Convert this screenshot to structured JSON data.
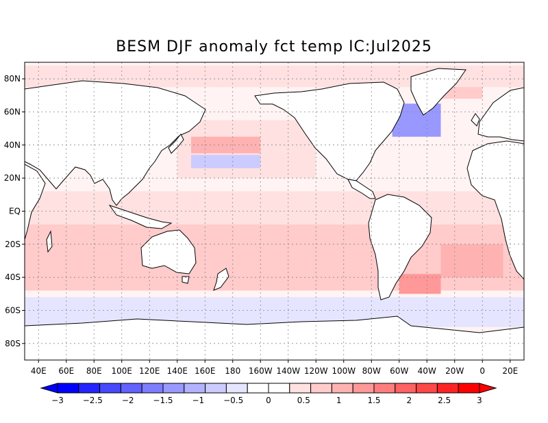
{
  "title": "BESM  DJF anomaly fct temp IC:Jul2025",
  "lat_labels": [
    "80N",
    "60N",
    "40N",
    "20N",
    "EQ",
    "20S",
    "40S",
    "60S",
    "80S"
  ],
  "lat_values": [
    80,
    60,
    40,
    20,
    0,
    -20,
    -40,
    -60,
    -80
  ],
  "lon_labels": [
    "40E",
    "60E",
    "80E",
    "100E",
    "120E",
    "140E",
    "160E",
    "180",
    "160W",
    "140W",
    "120W",
    "100W",
    "80W",
    "60W",
    "40W",
    "20W",
    "0",
    "20E"
  ],
  "lon_values": [
    40,
    60,
    80,
    100,
    120,
    140,
    160,
    180,
    200,
    220,
    240,
    260,
    280,
    300,
    320,
    340,
    360,
    380
  ],
  "map_extent": {
    "lon_min": 30,
    "lon_max": 390,
    "lat_min": -90,
    "lat_max": 90
  },
  "colorbar": {
    "ticks": [
      "−3",
      "−2.5",
      "−2",
      "−1.5",
      "−1",
      "−0.5",
      "0",
      "0.5",
      "1",
      "1.5",
      "2",
      "2.5",
      "3"
    ],
    "colors": [
      "#0000ff",
      "#2424ff",
      "#4848ff",
      "#6262ff",
      "#7d7dff",
      "#9898ff",
      "#b2b2ff",
      "#cbcbff",
      "#e5e5ff",
      "#ffffff",
      "#ffffff",
      "#ffe1e1",
      "#ffcbcb",
      "#ffb2b2",
      "#ff9898",
      "#ff7d7d",
      "#ff6262",
      "#ff4848",
      "#ff2424",
      "#ff0000"
    ]
  },
  "regions": [
    {
      "name": "warm-band-south",
      "lon1": 30,
      "lat1": -48,
      "lon2": 390,
      "lat2": -8,
      "level": "#ffcbcb"
    },
    {
      "name": "warm-band-equator",
      "lon1": 30,
      "lat1": -8,
      "lon2": 390,
      "lat2": 12,
      "level": "#ffe1e1"
    },
    {
      "name": "warm-north-pacific",
      "lon1": 140,
      "lat1": 20,
      "lon2": 240,
      "lat2": 55,
      "level": "#ffe1e1"
    },
    {
      "name": "warm-kuroshio",
      "lon1": 150,
      "lat1": 35,
      "lon2": 200,
      "lat2": 45,
      "level": "#ffb2b2"
    },
    {
      "name": "cool-pacific-30n",
      "lon1": 150,
      "lat1": 26,
      "lon2": 200,
      "lat2": 34,
      "level": "#cbcbff"
    },
    {
      "name": "cool-labrador",
      "lon1": 295,
      "lat1": 45,
      "lon2": 330,
      "lat2": 65,
      "level": "#9898ff"
    },
    {
      "name": "warm-greenland-sea",
      "lon1": 325,
      "lat1": 68,
      "lon2": 360,
      "lat2": 80,
      "level": "#ffcbcb"
    },
    {
      "name": "cool-southern-ocean",
      "lon1": 30,
      "lat1": -70,
      "lon2": 390,
      "lat2": -52,
      "level": "#e5e5ff"
    },
    {
      "name": "warm-argentina",
      "lon1": 300,
      "lat1": -50,
      "lon2": 330,
      "lat2": -38,
      "level": "#ff9898"
    },
    {
      "name": "warm-south-atlantic",
      "lon1": 330,
      "lat1": -40,
      "lon2": 375,
      "lat2": -20,
      "level": "#ffb2b2"
    },
    {
      "name": "warm-arctic",
      "lon1": 30,
      "lat1": 75,
      "lon2": 390,
      "lat2": 88,
      "level": "#ffe1e1"
    }
  ]
}
